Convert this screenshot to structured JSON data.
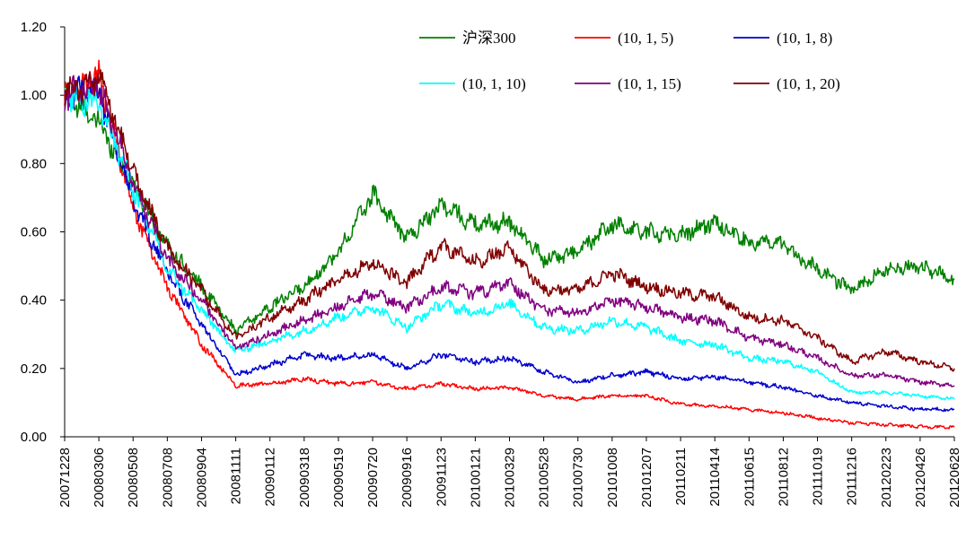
{
  "chart_data": {
    "type": "line",
    "title": "",
    "xlabel": "",
    "ylabel": "",
    "ylim": [
      0,
      1.2
    ],
    "yticks": [
      "0.00",
      "0.20",
      "0.40",
      "0.60",
      "0.80",
      "1.00",
      "1.20"
    ],
    "ytick_values": [
      0,
      0.2,
      0.4,
      0.6,
      0.8,
      1.0,
      1.2
    ],
    "grid": false,
    "legend_position": "top-right",
    "categories": [
      "20071228",
      "20080306",
      "20080508",
      "20080708",
      "20080904",
      "20081111",
      "20090112",
      "20090318",
      "20090519",
      "20090720",
      "20090916",
      "20091123",
      "20100121",
      "20100329",
      "20100528",
      "20100730",
      "20101008",
      "20101207",
      "20110211",
      "20110414",
      "20110615",
      "20110812",
      "20111019",
      "20111216",
      "20120223",
      "20120426",
      "20120628"
    ],
    "series": [
      {
        "name": "沪深300",
        "color": "#008000",
        "values": [
          1.0,
          0.92,
          0.74,
          0.56,
          0.44,
          0.31,
          0.38,
          0.44,
          0.54,
          0.71,
          0.58,
          0.68,
          0.62,
          0.63,
          0.52,
          0.54,
          0.62,
          0.6,
          0.59,
          0.63,
          0.57,
          0.56,
          0.49,
          0.43,
          0.49,
          0.5,
          0.46
        ]
      },
      {
        "name": "(10, 1, 5)",
        "color": "#ff0000",
        "values": [
          1.0,
          1.05,
          0.67,
          0.44,
          0.27,
          0.15,
          0.155,
          0.17,
          0.155,
          0.16,
          0.14,
          0.155,
          0.14,
          0.145,
          0.12,
          0.11,
          0.12,
          0.12,
          0.095,
          0.09,
          0.08,
          0.07,
          0.055,
          0.04,
          0.035,
          0.03,
          0.028
        ]
      },
      {
        "name": "(10, 1, 8)",
        "color": "#0000cc",
        "values": [
          1.0,
          1.01,
          0.69,
          0.48,
          0.33,
          0.18,
          0.21,
          0.24,
          0.23,
          0.24,
          0.2,
          0.24,
          0.22,
          0.23,
          0.19,
          0.16,
          0.18,
          0.19,
          0.17,
          0.175,
          0.16,
          0.145,
          0.12,
          0.1,
          0.09,
          0.08,
          0.08
        ]
      },
      {
        "name": "(10, 1, 10)",
        "color": "#00ffff",
        "values": [
          1.0,
          0.98,
          0.73,
          0.49,
          0.37,
          0.25,
          0.28,
          0.31,
          0.35,
          0.38,
          0.32,
          0.39,
          0.36,
          0.39,
          0.32,
          0.31,
          0.34,
          0.32,
          0.28,
          0.27,
          0.23,
          0.22,
          0.19,
          0.13,
          0.13,
          0.12,
          0.11
        ]
      },
      {
        "name": "(10, 1, 15)",
        "color": "#800080",
        "values": [
          1.0,
          1.03,
          0.74,
          0.52,
          0.4,
          0.26,
          0.3,
          0.34,
          0.38,
          0.42,
          0.38,
          0.44,
          0.42,
          0.45,
          0.37,
          0.36,
          0.4,
          0.38,
          0.35,
          0.34,
          0.29,
          0.27,
          0.23,
          0.18,
          0.18,
          0.16,
          0.15
        ]
      },
      {
        "name": "(10, 1, 20)",
        "color": "#800000",
        "values": [
          1.0,
          1.05,
          0.78,
          0.55,
          0.43,
          0.29,
          0.35,
          0.4,
          0.46,
          0.51,
          0.45,
          0.56,
          0.51,
          0.55,
          0.43,
          0.43,
          0.48,
          0.44,
          0.42,
          0.41,
          0.35,
          0.34,
          0.29,
          0.22,
          0.25,
          0.22,
          0.2
        ]
      }
    ]
  }
}
